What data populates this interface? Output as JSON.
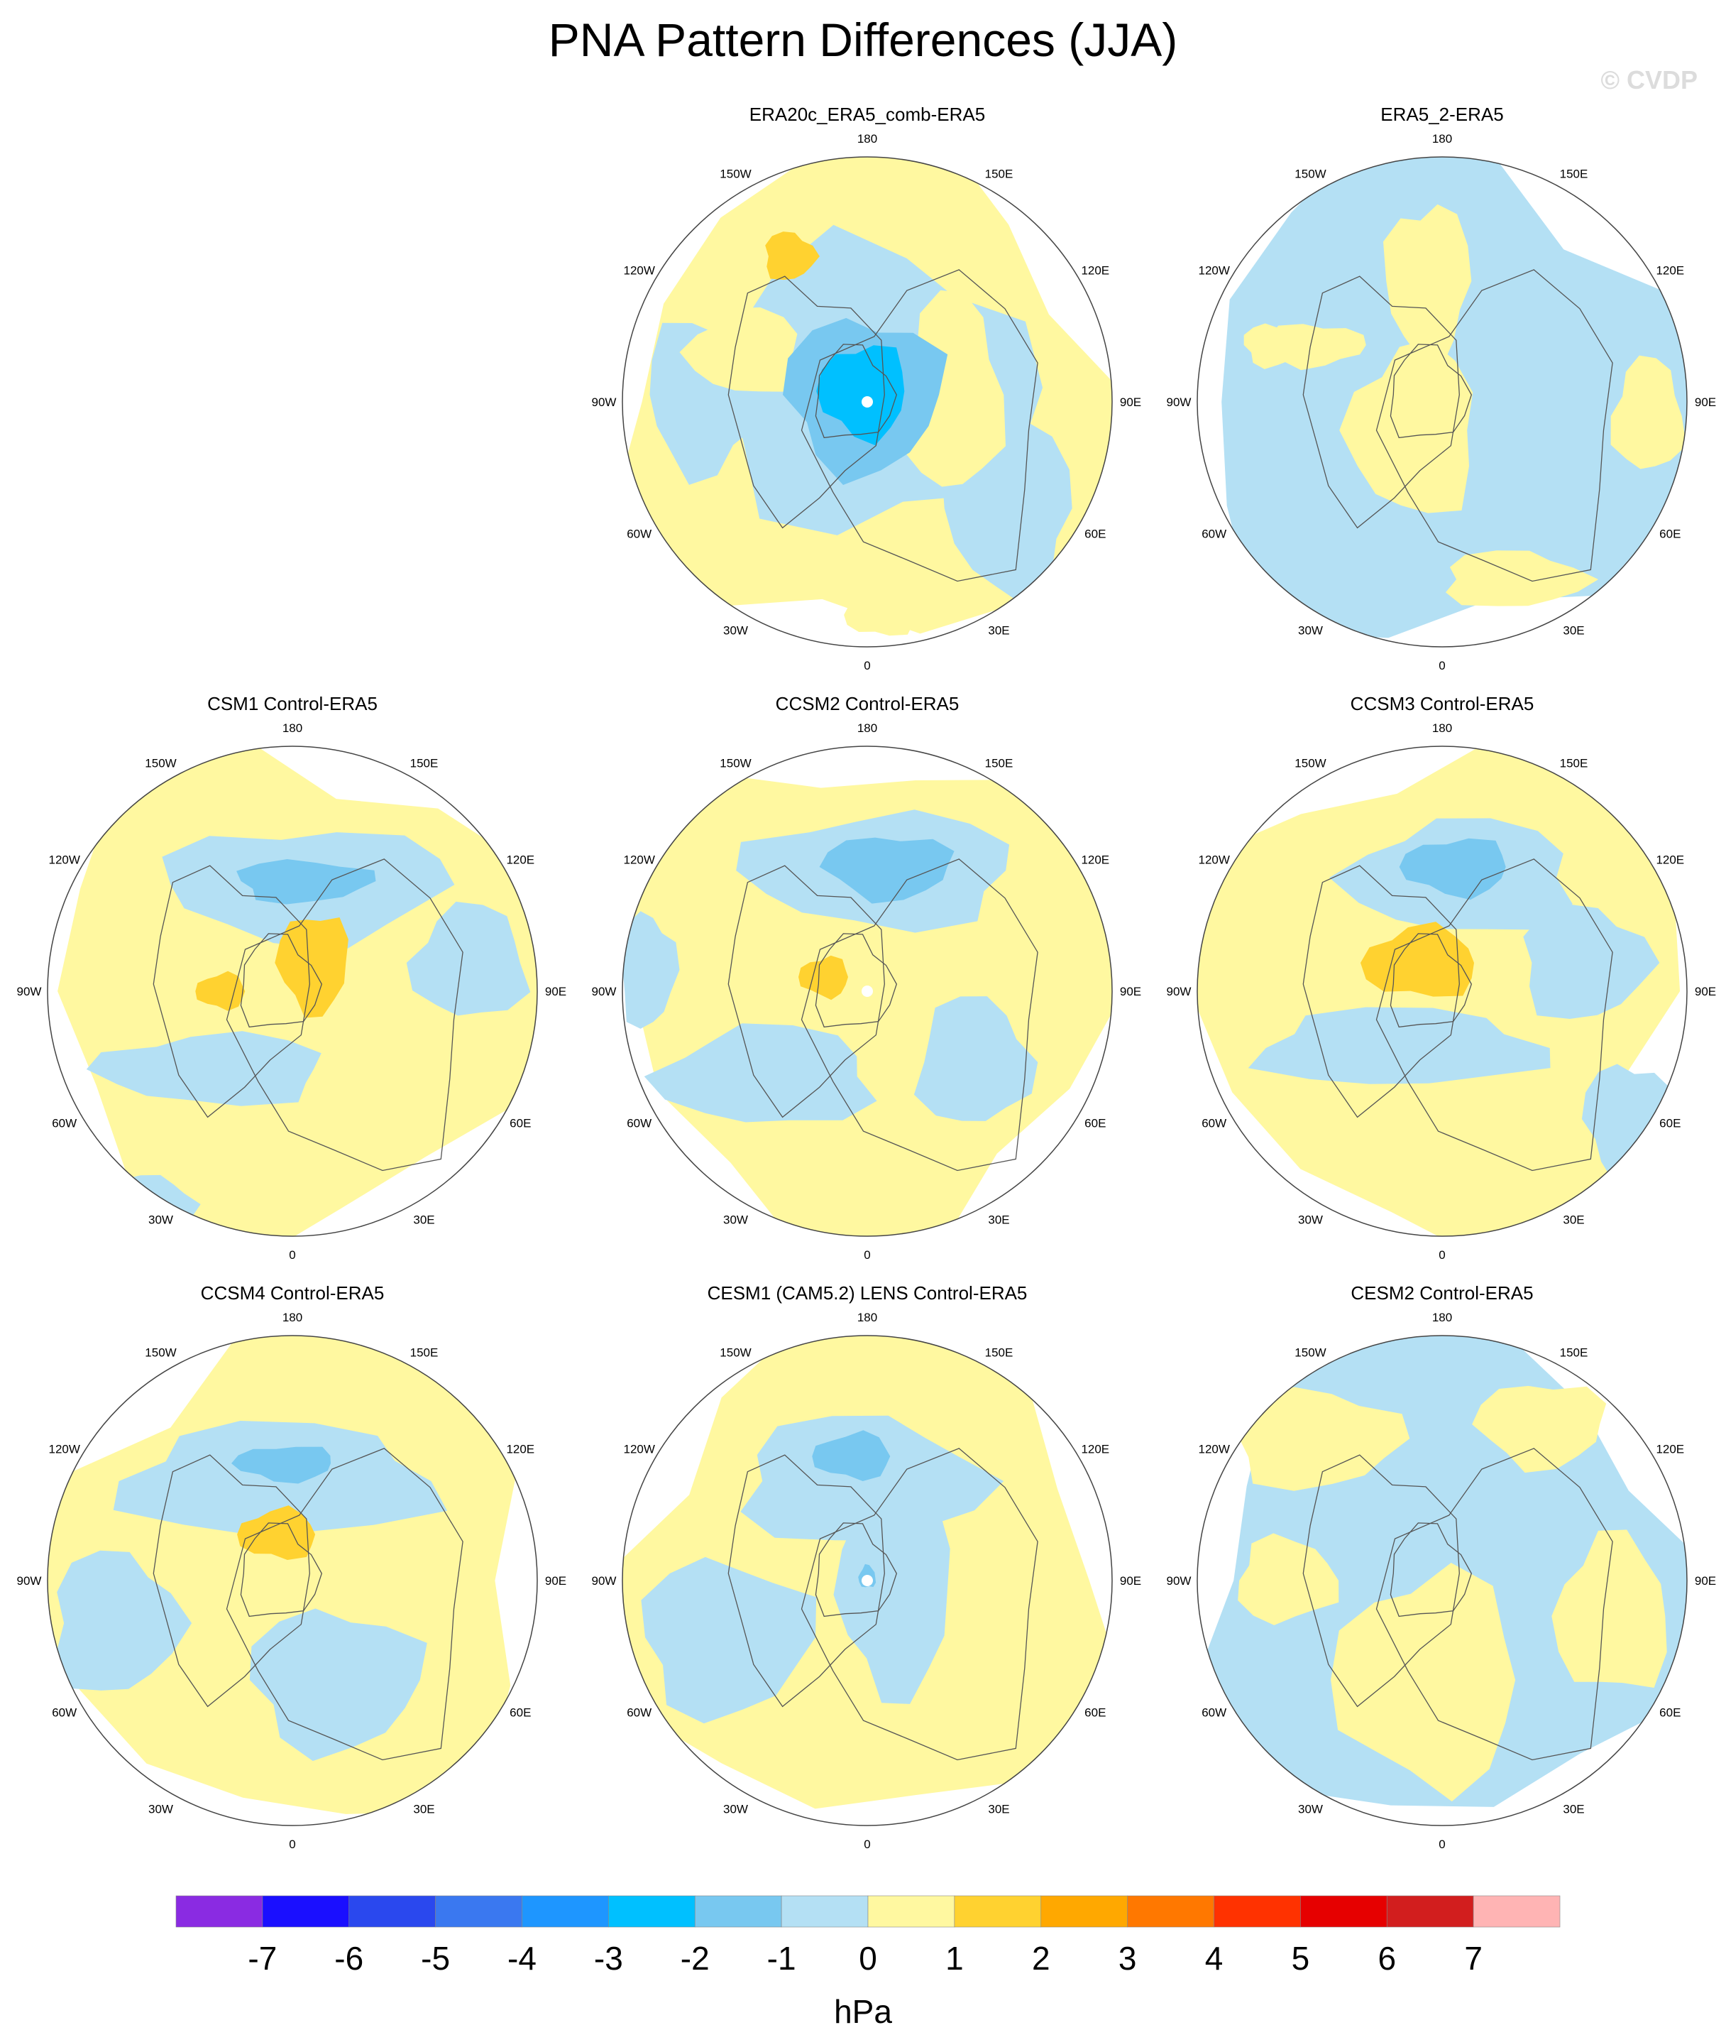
{
  "title": "PNA Pattern Differences (JJA)",
  "watermark": "© CVDP",
  "longitude_labels": {
    "top": "180",
    "top_right": "150E",
    "upper_right": "120E",
    "right": "90E",
    "lower_right": "60E",
    "bottom_right": "30E",
    "bottom": "0",
    "bottom_left": "30W",
    "lower_left": "60W",
    "left": "90W",
    "upper_left": "120W",
    "top_left": "150W"
  },
  "panels": [
    {
      "title": "ERA20c_ERA5_comb-ERA5"
    },
    {
      "title": "ERA5_2-ERA5"
    },
    {
      "title": "CSM1 Control-ERA5"
    },
    {
      "title": "CCSM2 Control-ERA5"
    },
    {
      "title": "CCSM3 Control-ERA5"
    },
    {
      "title": "CCSM4 Control-ERA5"
    },
    {
      "title": "CESM1 (CAM5.2) LENS Control-ERA5"
    },
    {
      "title": "CESM2 Control-ERA5"
    }
  ],
  "colorbar": {
    "units": "hPa",
    "labels": [
      "-7",
      "-6",
      "-5",
      "-4",
      "-3",
      "-2",
      "-1",
      "0",
      "1",
      "2",
      "3",
      "4",
      "5",
      "6",
      "7"
    ],
    "colors": [
      "#8a2be2",
      "#1a0fff",
      "#2a48ee",
      "#3a78f0",
      "#1e96ff",
      "#00c0ff",
      "#78c8f0",
      "#b4e0f4",
      "#fff8a0",
      "#ffd230",
      "#ffa800",
      "#ff7800",
      "#ff3200",
      "#e60000",
      "#d21e1e",
      "#ffb4b4"
    ]
  },
  "colors": {
    "ocean_neg_1": "#b4e0f4",
    "pos_0_1": "#fff8a0",
    "pos_1_2": "#ffd230",
    "neg_1_2": "#78c8f0",
    "neg_2_3": "#00c0ff"
  }
}
